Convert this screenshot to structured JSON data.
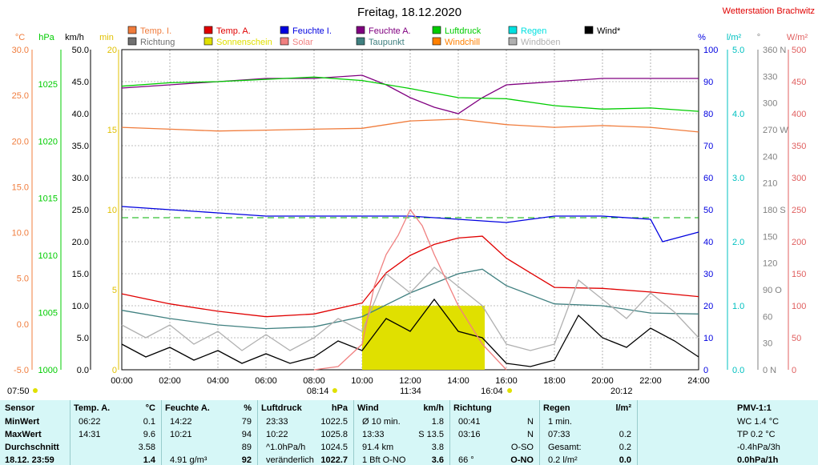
{
  "title": "Freitag, 18.12.2020",
  "station": "Wetterstation Brachwitz",
  "legend": [
    {
      "label": "Temp. I.",
      "color": "#f07c3c"
    },
    {
      "label": "Temp. A.",
      "color": "#e00000"
    },
    {
      "label": "Feuchte I.",
      "color": "#0000e0"
    },
    {
      "label": "Feuchte A.",
      "color": "#800080"
    },
    {
      "label": "Luftdruck",
      "color": "#00cc00"
    },
    {
      "label": "Regen",
      "color": "#00e0e0"
    },
    {
      "label": "Wind*",
      "color": "#000000"
    },
    {
      "label": "Richtung",
      "color": "#707070"
    },
    {
      "label": "Sonnenschein",
      "color": "#e0e000"
    },
    {
      "label": "Solar",
      "color": "#f08080"
    },
    {
      "label": "Taupunkt",
      "color": "#408080"
    },
    {
      "label": "Windchill",
      "color": "#ff8000"
    },
    {
      "label": "Windböen",
      "color": "#b0b0b0"
    }
  ],
  "axes": {
    "celsius": {
      "unit": "°C",
      "color": "#f07c3c",
      "ticks": [
        "30.0",
        "25.0",
        "20.0",
        "15.0",
        "10.0",
        "5.0",
        "0.0",
        "-5.0"
      ]
    },
    "hpa": {
      "unit": "hPa",
      "color": "#00cc00",
      "ticks": [
        "1025",
        "1020",
        "1015",
        "1010",
        "1005",
        "1000"
      ]
    },
    "kmh": {
      "unit": "km/h",
      "color": "#000000",
      "ticks": [
        "50.0",
        "45.0",
        "40.0",
        "35.0",
        "30.0",
        "25.0",
        "20.0",
        "15.0",
        "10.0",
        "5.0",
        "0.0"
      ]
    },
    "min": {
      "unit": "min",
      "color": "#e0c000",
      "ticks": [
        "20",
        "15",
        "10",
        "5",
        "0"
      ]
    },
    "pct": {
      "unit": "%",
      "color": "#0000e0",
      "ticks": [
        "100",
        "90",
        "80",
        "70",
        "60",
        "50",
        "40",
        "30",
        "20",
        "10",
        "0"
      ]
    },
    "lm2": {
      "unit": "l/m²",
      "color": "#00c0c0",
      "ticks": [
        "5.0",
        "4.0",
        "3.0",
        "2.0",
        "1.0",
        "0.0"
      ]
    },
    "deg": {
      "unit": "°",
      "color": "#808080",
      "ticks": [
        "360 N",
        "330",
        "300",
        "270 W",
        "240",
        "210",
        "180 S",
        "150",
        "120",
        "90 O",
        "60",
        "30",
        "0 N"
      ]
    },
    "wm2": {
      "unit": "W/m²",
      "color": "#e06060",
      "ticks": [
        "500",
        "450",
        "400",
        "350",
        "300",
        "250",
        "200",
        "150",
        "100",
        "50",
        "0"
      ]
    },
    "x": [
      "00:00",
      "02:00",
      "04:00",
      "06:00",
      "08:00",
      "10:00",
      "12:00",
      "14:00",
      "16:00",
      "18:00",
      "20:00",
      "22:00",
      "24:00"
    ]
  },
  "markers": {
    "sunrise_label": "07:50",
    "sunrise_time": "08:14",
    "sun_max": "11:34",
    "sunset_time": "16:04",
    "moon_time": "20:12"
  },
  "chart_data": {
    "type": "line",
    "title": "Freitag, 18.12.2020",
    "x_range_hours": [
      0,
      24
    ],
    "series": [
      {
        "name": "Temp. I.",
        "axis": "celsius",
        "color": "#f07c3c",
        "x": [
          0,
          2,
          4,
          6,
          8,
          10,
          12,
          14,
          16,
          18,
          20,
          22,
          24
        ],
        "values": [
          21.5,
          21.3,
          21.1,
          21.2,
          21.3,
          21.4,
          22.2,
          22.4,
          21.8,
          21.5,
          21.7,
          21.5,
          21.0
        ]
      },
      {
        "name": "Temp. A.",
        "axis": "celsius",
        "color": "#e00000",
        "x": [
          0,
          2,
          4,
          6,
          8,
          10,
          11,
          12,
          13,
          14,
          15,
          16,
          17,
          18,
          20,
          22,
          24
        ],
        "values": [
          3.3,
          2.2,
          1.4,
          0.8,
          1.1,
          2.3,
          5.6,
          7.5,
          8.7,
          9.4,
          9.6,
          7.2,
          5.6,
          4.0,
          3.9,
          3.5,
          3.0
        ]
      },
      {
        "name": "Feuchte I.",
        "axis": "pct",
        "color": "#0000e0",
        "x": [
          0,
          2,
          4,
          6,
          8,
          10,
          12,
          14,
          16,
          18,
          20,
          22,
          22.5,
          24
        ],
        "values": [
          51,
          50,
          49,
          48,
          48,
          48,
          48,
          47,
          46,
          48,
          48,
          47,
          40,
          43
        ]
      },
      {
        "name": "Feuchte A.",
        "axis": "pct",
        "color": "#800080",
        "x": [
          0,
          2,
          4,
          6,
          8,
          10,
          11,
          12,
          13,
          14,
          15,
          16,
          18,
          20,
          22,
          24
        ],
        "values": [
          88,
          89,
          90,
          91,
          91,
          92,
          89,
          85,
          82,
          80,
          85,
          89,
          90,
          91,
          91,
          91
        ]
      },
      {
        "name": "Luftdruck",
        "axis": "hpa",
        "color": "#00cc00",
        "x": [
          0,
          2,
          4,
          6,
          8,
          10,
          12,
          14,
          16,
          18,
          20,
          22,
          24
        ],
        "values": [
          1024.8,
          1025.1,
          1025.2,
          1025.4,
          1025.6,
          1025.3,
          1024.6,
          1023.8,
          1023.7,
          1023.1,
          1022.8,
          1022.9,
          1022.6
        ]
      },
      {
        "name": "Taupunkt",
        "axis": "celsius",
        "color": "#408080",
        "x": [
          0,
          2,
          4,
          6,
          8,
          10,
          12,
          14,
          15,
          16,
          18,
          20,
          22,
          24
        ],
        "values": [
          1.5,
          0.6,
          -0.1,
          -0.5,
          -0.3,
          0.8,
          3.4,
          5.5,
          6.0,
          4.2,
          2.2,
          2.0,
          1.2,
          1.1
        ]
      },
      {
        "name": "Wind*",
        "axis": "kmh",
        "color": "#000000",
        "x": [
          0,
          1,
          2,
          3,
          4,
          5,
          6,
          7,
          8,
          9,
          10,
          11,
          12,
          13,
          14,
          15,
          16,
          17,
          18,
          19,
          20,
          21,
          22,
          23,
          24
        ],
        "values": [
          4.0,
          2.0,
          3.5,
          1.5,
          3.0,
          1.0,
          2.5,
          1.0,
          2.0,
          4.5,
          3.0,
          8.0,
          6.0,
          11.0,
          6.0,
          5.0,
          1.0,
          0.5,
          1.5,
          8.5,
          5.0,
          3.5,
          6.5,
          4.5,
          2.0
        ]
      },
      {
        "name": "Windböen",
        "axis": "kmh",
        "color": "#b0b0b0",
        "x": [
          0,
          1,
          2,
          3,
          4,
          5,
          6,
          7,
          8,
          9,
          10,
          11,
          12,
          13,
          14,
          15,
          16,
          17,
          18,
          19,
          20,
          21,
          22,
          23,
          24
        ],
        "values": [
          7.0,
          5.0,
          7.0,
          4.0,
          6.0,
          3.0,
          5.5,
          3.0,
          5.0,
          8.0,
          6.0,
          15.0,
          12.0,
          16.0,
          13.0,
          10.0,
          4.0,
          3.0,
          4.0,
          14.0,
          11.0,
          8.0,
          12.0,
          9.0,
          5.0
        ]
      },
      {
        "name": "Solar",
        "axis": "wm2",
        "color": "#f08080",
        "x": [
          8,
          9,
          10,
          10.5,
          11,
          11.5,
          12,
          12.5,
          13,
          14,
          15,
          16
        ],
        "values": [
          0,
          5,
          40,
          130,
          180,
          210,
          250,
          225,
          180,
          100,
          40,
          0
        ]
      },
      {
        "name": "Sonnenschein",
        "axis": "min",
        "color": "#e0e000",
        "x": [
          10,
          15.1
        ],
        "values": [
          4,
          4
        ]
      }
    ]
  },
  "table": {
    "columns": [
      {
        "title": "Sensor",
        "lines": [
          "MinWert",
          "MaxWert",
          "Durchschnitt",
          "18.12. 23:59"
        ]
      },
      {
        "title": "Temp. A.",
        "unit": "°C",
        "lines": [
          "06:22",
          "14:31",
          "",
          ""
        ],
        "vals": [
          "0.1",
          "9.6",
          "3.58",
          "1.4"
        ]
      },
      {
        "title": "Feuchte A.",
        "unit": "%",
        "lines": [
          "14:22",
          "10:21",
          "",
          "4.91 g/m³"
        ],
        "vals": [
          "79",
          "94",
          "89",
          "92"
        ]
      },
      {
        "title": "Luftdruck",
        "unit": "hPa",
        "lines": [
          "23:33",
          "10:22",
          "^1.0hPa/h",
          "veränderlich"
        ],
        "vals": [
          "1022.5",
          "1025.8",
          "1024.5",
          "1022.7"
        ]
      },
      {
        "title": "Wind",
        "unit": "km/h",
        "lines": [
          "Ø 10 min.",
          "13:33",
          "91.4 km",
          "1 Bft O-NO"
        ],
        "vals": [
          "1.8",
          "S 13.5",
          "3.8",
          "3.6"
        ]
      },
      {
        "title": "Richtung",
        "unit": "",
        "lines": [
          "00:41",
          "03:16",
          "",
          "66 °"
        ],
        "vals": [
          "N",
          "N",
          "O-SO",
          "O-NO"
        ]
      },
      {
        "title": "Regen",
        "unit": "l/m²",
        "lines": [
          "1 min.",
          "07:33",
          "Gesamt:",
          "0.2 l/m²"
        ],
        "vals": [
          "",
          "0.2",
          "0.2",
          "0.0"
        ]
      },
      {
        "title": "PMV-1:1",
        "lines": [
          "WC 1.4 °C",
          "TP 0.2 °C",
          "-0.4hPa/3h",
          "0.0hPa/1h"
        ]
      }
    ]
  }
}
